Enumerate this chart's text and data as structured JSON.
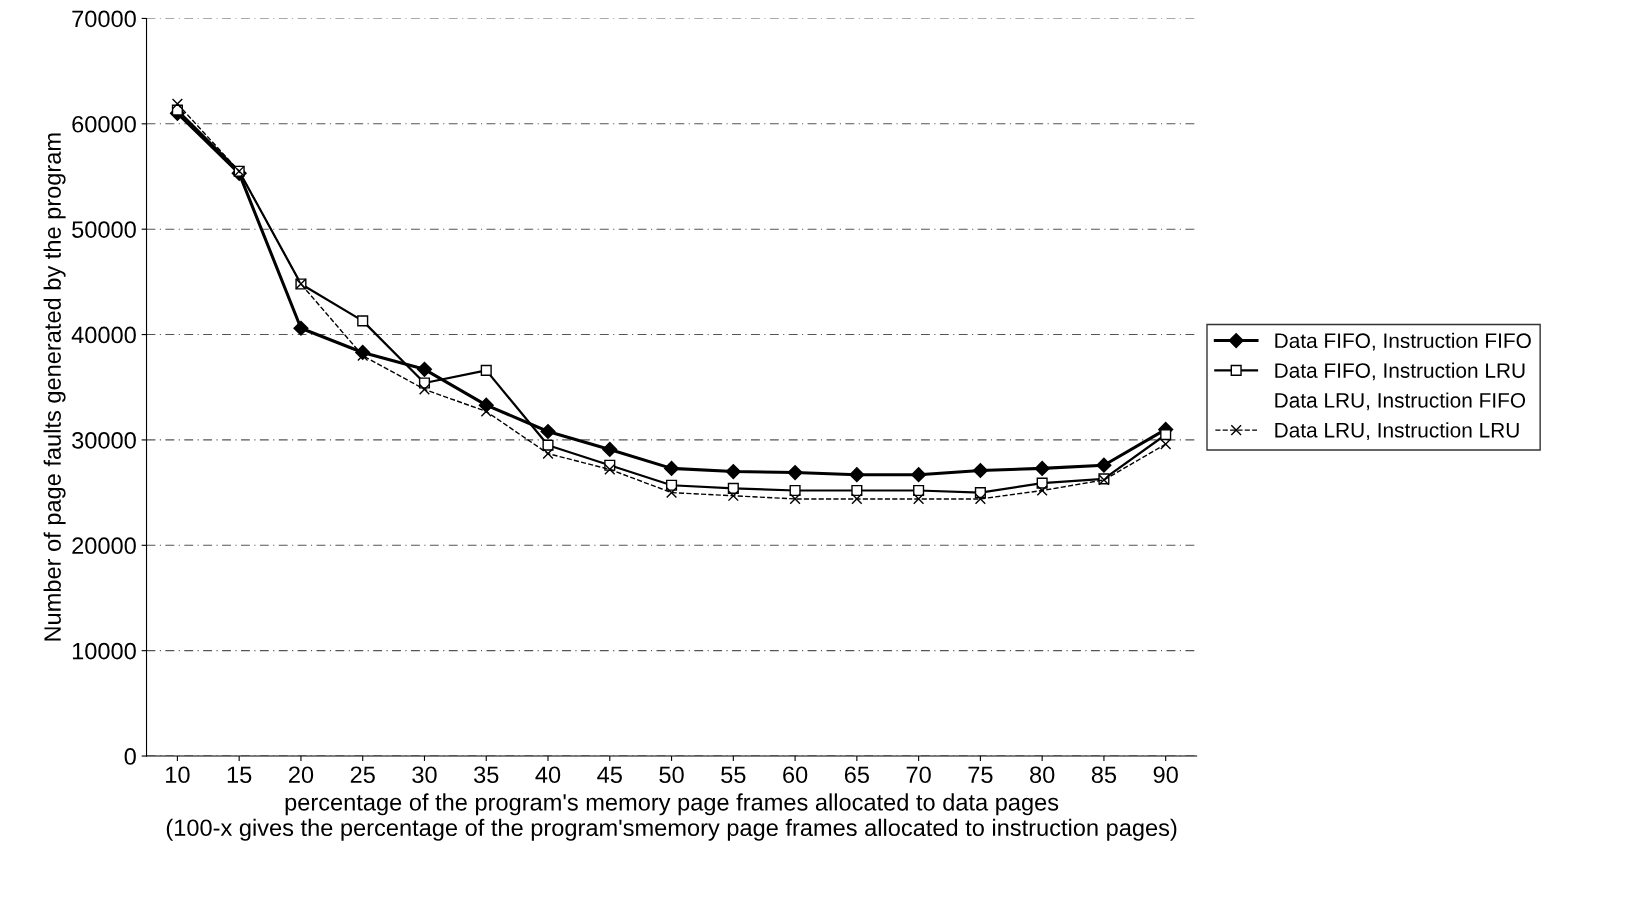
{
  "chart_data": {
    "type": "line",
    "xlabel": "percentage of the program's memory page frames allocated to data pages\n(100-x gives the percentage of the program'smemory page frames allocated to instruction pages)",
    "ylabel": "Number of page faults generated by the program",
    "categories": [
      "10",
      "15",
      "20",
      "25",
      "30",
      "35",
      "40",
      "45",
      "50",
      "55",
      "60",
      "65",
      "70",
      "75",
      "80",
      "85",
      "90"
    ],
    "series": [
      {
        "name": "Data FIFO, Instruction FIFO",
        "color": "#000000",
        "marker": "diamond",
        "line_style": "solid",
        "values": [
          61000,
          55300,
          40600,
          38300,
          36700,
          33300,
          30800,
          29100,
          27300,
          27000,
          26900,
          26700,
          26700,
          27100,
          27300,
          27600,
          31000
        ]
      },
      {
        "name": "Data FIFO, Instruction LRU",
        "color": "#000000",
        "marker": "square",
        "line_style": "solid",
        "values": [
          61300,
          55500,
          44800,
          41300,
          35400,
          36600,
          29500,
          27600,
          25700,
          25400,
          25200,
          25200,
          25200,
          25000,
          25900,
          26300,
          30500
        ]
      },
      {
        "name": "Data LRU, Instruction FIFO",
        "marker": "none",
        "values": [
          null,
          null,
          null,
          null,
          null,
          null,
          null,
          null,
          null,
          null,
          null,
          null,
          null,
          null,
          null,
          null,
          null
        ]
      },
      {
        "name": "Data LRU, Instruction LRU",
        "color": "#000000",
        "marker": "cross",
        "line_style": "dashed",
        "values": [
          61900,
          55500,
          44800,
          38000,
          34800,
          32700,
          28700,
          27200,
          25000,
          24700,
          24400,
          24400,
          24400,
          24400,
          25200,
          26200,
          29600
        ]
      }
    ],
    "ylim": [
      0,
      70000
    ],
    "yticks": [
      0,
      10000,
      20000,
      30000,
      40000,
      50000,
      60000,
      70000
    ],
    "grid": "y",
    "legend": "right"
  }
}
